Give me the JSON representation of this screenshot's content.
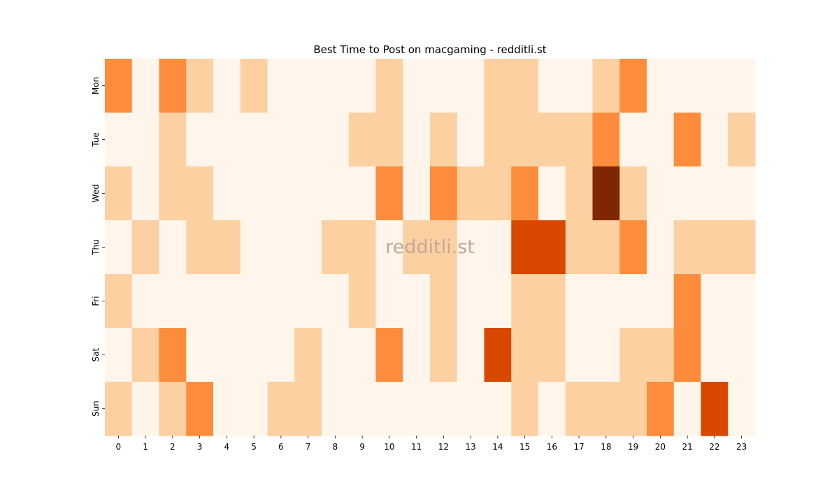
{
  "chart_data": {
    "type": "heatmap",
    "title": "Best Time to Post on macgaming - redditli.st",
    "xlabel": "",
    "ylabel": "",
    "x_categories": [
      "0",
      "1",
      "2",
      "3",
      "4",
      "5",
      "6",
      "7",
      "8",
      "9",
      "10",
      "11",
      "12",
      "13",
      "14",
      "15",
      "16",
      "17",
      "18",
      "19",
      "20",
      "21",
      "22",
      "23"
    ],
    "y_categories": [
      "Mon",
      "Tue",
      "Wed",
      "Thu",
      "Fri",
      "Sat",
      "Sun"
    ],
    "values": [
      [
        2,
        0,
        2,
        1,
        0,
        1,
        0,
        0,
        0,
        0,
        1,
        0,
        0,
        0,
        1,
        1,
        0,
        0,
        1,
        2,
        0,
        0,
        0,
        0
      ],
      [
        0,
        0,
        1,
        0,
        0,
        0,
        0,
        0,
        0,
        1,
        1,
        0,
        1,
        0,
        1,
        1,
        1,
        1,
        2,
        0,
        0,
        2,
        0,
        1
      ],
      [
        1,
        0,
        1,
        1,
        0,
        0,
        0,
        0,
        0,
        0,
        2,
        0,
        2,
        1,
        1,
        2,
        0,
        1,
        4,
        1,
        0,
        0,
        0,
        0
      ],
      [
        0,
        1,
        0,
        1,
        1,
        0,
        0,
        0,
        1,
        1,
        0,
        1,
        1,
        0,
        0,
        3,
        3,
        1,
        1,
        2,
        0,
        1,
        1,
        1
      ],
      [
        1,
        0,
        0,
        0,
        0,
        0,
        0,
        0,
        0,
        1,
        0,
        0,
        1,
        0,
        0,
        1,
        1,
        0,
        0,
        0,
        0,
        2,
        0,
        0
      ],
      [
        0,
        1,
        2,
        0,
        0,
        0,
        0,
        1,
        0,
        0,
        2,
        0,
        1,
        0,
        3,
        1,
        1,
        0,
        0,
        1,
        1,
        2,
        0,
        0
      ],
      [
        1,
        0,
        1,
        2,
        0,
        0,
        1,
        1,
        0,
        0,
        0,
        0,
        0,
        0,
        0,
        1,
        0,
        1,
        1,
        1,
        2,
        0,
        3,
        0
      ]
    ],
    "colormap": "Oranges",
    "color_levels": [
      "#fff5eb",
      "#fdd0a2",
      "#fd8d3c",
      "#d94801",
      "#7f2704"
    ],
    "value_range": [
      0,
      4
    ],
    "colorbar": false,
    "watermark": "redditli.st"
  }
}
